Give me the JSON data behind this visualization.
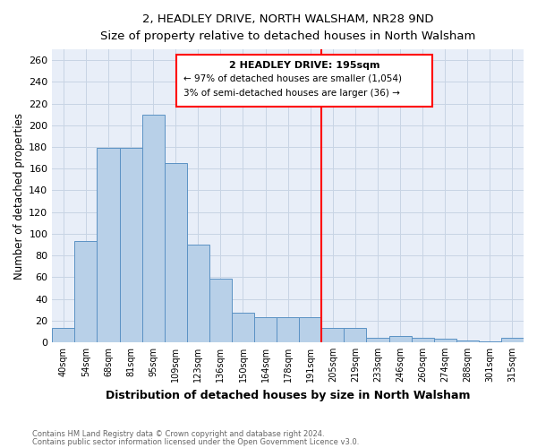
{
  "title": "2, HEADLEY DRIVE, NORTH WALSHAM, NR28 9ND",
  "subtitle": "Size of property relative to detached houses in North Walsham",
  "xlabel": "Distribution of detached houses by size in North Walsham",
  "ylabel": "Number of detached properties",
  "footer1": "Contains HM Land Registry data © Crown copyright and database right 2024.",
  "footer2": "Contains public sector information licensed under the Open Government Licence v3.0.",
  "categories": [
    "40sqm",
    "54sqm",
    "68sqm",
    "81sqm",
    "95sqm",
    "109sqm",
    "123sqm",
    "136sqm",
    "150sqm",
    "164sqm",
    "178sqm",
    "191sqm",
    "205sqm",
    "219sqm",
    "233sqm",
    "246sqm",
    "260sqm",
    "274sqm",
    "288sqm",
    "301sqm",
    "315sqm"
  ],
  "values": [
    13,
    93,
    179,
    179,
    210,
    165,
    90,
    59,
    27,
    23,
    23,
    23,
    13,
    13,
    4,
    6,
    4,
    3,
    2,
    1,
    4
  ],
  "bar_color": "#b8d0e8",
  "bar_edge_color": "#5b92c4",
  "grid_color": "#c8d4e4",
  "background_color": "#e8eef8",
  "vline_index": 11,
  "annotation_title": "2 HEADLEY DRIVE: 195sqm",
  "annotation_line1": "← 97% of detached houses are smaller (1,054)",
  "annotation_line2": "3% of semi-detached houses are larger (36) →",
  "ylim": [
    0,
    270
  ],
  "yticks": [
    0,
    20,
    40,
    60,
    80,
    100,
    120,
    140,
    160,
    180,
    200,
    220,
    240,
    260
  ]
}
